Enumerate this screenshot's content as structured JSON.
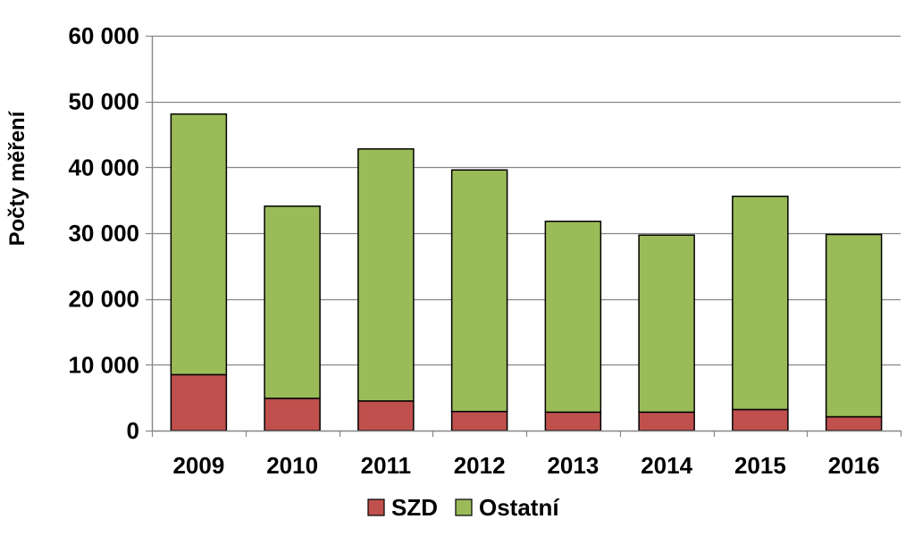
{
  "chart_data": {
    "type": "bar",
    "stacked": true,
    "categories": [
      "2009",
      "2010",
      "2011",
      "2012",
      "2013",
      "2014",
      "2015",
      "2016"
    ],
    "series": [
      {
        "name": "SZD",
        "color": "#c0504d",
        "values": [
          8500,
          4900,
          4500,
          2900,
          2800,
          2800,
          3200,
          2100
        ]
      },
      {
        "name": "Ostatní",
        "color": "#9bbb59",
        "values": [
          39600,
          29200,
          38300,
          36700,
          29000,
          26900,
          32400,
          27700
        ]
      }
    ],
    "ylabel": "Počty měření",
    "xlabel": "",
    "ylim": [
      0,
      60000
    ],
    "yticks": [
      0,
      10000,
      20000,
      30000,
      40000,
      50000,
      60000
    ],
    "ytick_labels": [
      "0",
      "10 000",
      "20 000",
      "30 000",
      "40 000",
      "50 000",
      "60 000"
    ],
    "grid": true,
    "gridline_color": "#868686",
    "legend_position": "bottom-center"
  }
}
